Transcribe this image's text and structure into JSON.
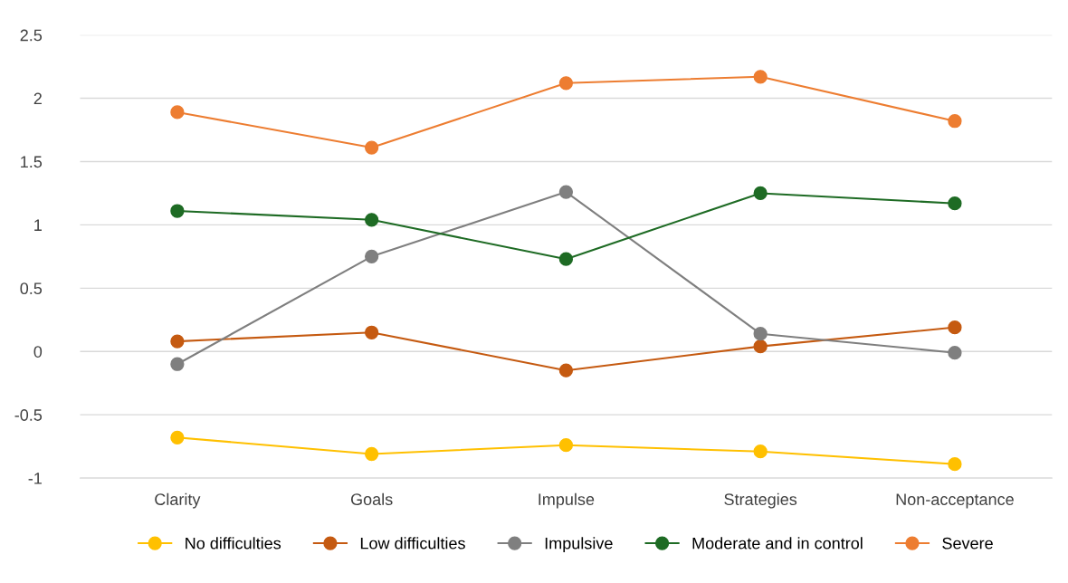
{
  "chart_data": {
    "type": "line",
    "categories": [
      "Clarity",
      "Goals",
      "Impulse",
      "Strategies",
      "Non-acceptance"
    ],
    "series": [
      {
        "name": "No difficulties",
        "color": "#ffc000",
        "values": [
          -0.68,
          -0.81,
          -0.74,
          -0.79,
          -0.89
        ]
      },
      {
        "name": "Low difficulties",
        "color": "#c55a11",
        "values": [
          0.08,
          0.15,
          -0.15,
          0.04,
          0.19
        ]
      },
      {
        "name": "Impulsive",
        "color": "#7f7f7f",
        "values": [
          -0.1,
          0.75,
          1.26,
          0.14,
          -0.01
        ]
      },
      {
        "name": "Moderate and in control",
        "color": "#1e6b24",
        "values": [
          1.11,
          1.04,
          0.73,
          1.25,
          1.17
        ]
      },
      {
        "name": "Severe",
        "color": "#ed7d31",
        "values": [
          1.89,
          1.61,
          2.12,
          2.17,
          1.82
        ]
      }
    ],
    "ylim": [
      -1,
      2.5
    ],
    "yticks": [
      -1,
      -0.5,
      0,
      0.5,
      1,
      1.5,
      2,
      2.5
    ],
    "grid": "y",
    "legend": "bottom",
    "marker": "circle",
    "line_style": "solid"
  }
}
